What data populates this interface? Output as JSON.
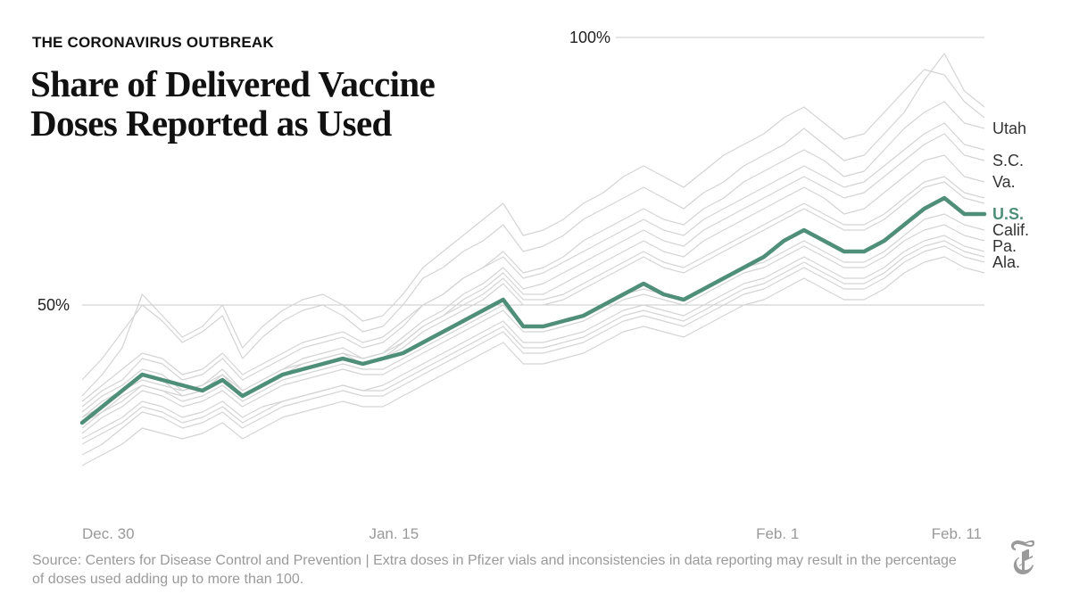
{
  "header": {
    "kicker": "THE CORONAVIRUS OUTBREAK",
    "title": "Share of Delivered Vaccine Doses Reported as Used"
  },
  "footer": {
    "source": "Source: Centers for Disease Control and Prevention | Extra doses in Pfizer vials and inconsistencies in data reporting may result in the percentage of doses used adding up to more than 100."
  },
  "logo": {
    "icon": "nyt-logo-icon",
    "color": "#9a9a9a"
  },
  "chart_data": {
    "type": "line",
    "title": "Share of Delivered Vaccine Doses Reported as Used",
    "xlabel": "",
    "ylabel": "",
    "xlim": [
      0,
      43
    ],
    "ylim": [
      10,
      100
    ],
    "x_ticks": [
      {
        "day": 0,
        "label": "Dec. 30"
      },
      {
        "day": 14,
        "label": "Jan. 15"
      },
      {
        "day": 32,
        "label": "Feb. 1"
      },
      {
        "day": 42,
        "label": "Feb. 11"
      }
    ],
    "y_ticks": [
      {
        "value": 50,
        "label": "50%"
      },
      {
        "value": 100,
        "label": "100%"
      }
    ],
    "grid": true,
    "highlight": {
      "name": "U.S.",
      "color": "#4f8f7a",
      "values": [
        28,
        31,
        34,
        37,
        36,
        35,
        34,
        36,
        33,
        35,
        37,
        38,
        39,
        40,
        39,
        40,
        41,
        43,
        45,
        47,
        49,
        51,
        46,
        46,
        47,
        48,
        50,
        52,
        54,
        52,
        51,
        53,
        55,
        57,
        59,
        62,
        64,
        62,
        60,
        60,
        62,
        65,
        68,
        70,
        67,
        67
      ]
    },
    "series_color": "#d4d4d4",
    "series": [
      {
        "name": "Utah",
        "values": [
          31,
          34,
          36,
          40,
          39,
          36,
          37,
          40,
          36,
          38,
          40,
          42,
          43,
          44,
          42,
          43,
          46,
          50,
          52,
          55,
          57,
          60,
          56,
          57,
          59,
          62,
          64,
          66,
          68,
          66,
          65,
          68,
          70,
          73,
          75,
          77,
          79,
          77,
          74,
          75,
          79,
          83,
          86,
          88,
          84,
          83
        ]
      },
      {
        "name": "S.C.",
        "values": [
          30,
          33,
          35,
          38,
          37,
          34,
          35,
          38,
          34,
          36,
          38,
          40,
          41,
          42,
          40,
          41,
          44,
          47,
          49,
          52,
          54,
          57,
          53,
          54,
          56,
          58,
          60,
          62,
          64,
          62,
          61,
          64,
          66,
          68,
          70,
          72,
          74,
          72,
          70,
          71,
          74,
          77,
          80,
          82,
          78,
          77
        ]
      },
      {
        "name": "Va.",
        "values": [
          29,
          32,
          34,
          37,
          36,
          33,
          34,
          37,
          33,
          35,
          37,
          39,
          40,
          41,
          39,
          40,
          43,
          46,
          48,
          51,
          53,
          56,
          52,
          52,
          54,
          56,
          58,
          60,
          62,
          60,
          59,
          62,
          64,
          66,
          68,
          70,
          72,
          70,
          67,
          68,
          71,
          74,
          77,
          78,
          74,
          73
        ]
      },
      {
        "name": "Calif.",
        "values": [
          27,
          30,
          32,
          35,
          34,
          32,
          33,
          35,
          32,
          34,
          36,
          37,
          38,
          39,
          38,
          38,
          40,
          42,
          44,
          46,
          48,
          50,
          46,
          46,
          47,
          48,
          50,
          52,
          53,
          52,
          51,
          53,
          55,
          57,
          58,
          60,
          62,
          60,
          58,
          58,
          60,
          63,
          66,
          67,
          65,
          64
        ]
      },
      {
        "name": "Pa.",
        "values": [
          26,
          29,
          31,
          34,
          33,
          31,
          32,
          34,
          31,
          33,
          35,
          36,
          37,
          38,
          37,
          37,
          39,
          41,
          43,
          45,
          47,
          49,
          45,
          45,
          46,
          47,
          49,
          51,
          52,
          51,
          50,
          52,
          54,
          56,
          57,
          59,
          61,
          59,
          57,
          57,
          59,
          62,
          64,
          65,
          63,
          62
        ]
      },
      {
        "name": "Ala.",
        "values": [
          25,
          27,
          29,
          32,
          31,
          29,
          30,
          32,
          29,
          31,
          32,
          33,
          34,
          35,
          34,
          35,
          37,
          39,
          41,
          43,
          45,
          47,
          43,
          43,
          44,
          45,
          47,
          49,
          50,
          49,
          48,
          50,
          52,
          54,
          55,
          57,
          59,
          57,
          55,
          55,
          57,
          60,
          62,
          63,
          61,
          60
        ]
      },
      {
        "name": "",
        "values": [
          36,
          40,
          45,
          50,
          47,
          43,
          45,
          48,
          40,
          44,
          47,
          49,
          50,
          48,
          45,
          46,
          50,
          55,
          57,
          60,
          62,
          65,
          60,
          61,
          63,
          66,
          68,
          70,
          72,
          70,
          68,
          71,
          73,
          76,
          78,
          80,
          83,
          80,
          77,
          78,
          82,
          86,
          92,
          97,
          90,
          87
        ]
      },
      {
        "name": "",
        "values": [
          20,
          22,
          24,
          27,
          26,
          25,
          26,
          28,
          25,
          27,
          29,
          30,
          31,
          32,
          31,
          31,
          33,
          35,
          37,
          39,
          41,
          43,
          39,
          39,
          40,
          41,
          43,
          45,
          46,
          45,
          44,
          46,
          48,
          50,
          51,
          53,
          55,
          53,
          51,
          51,
          53,
          56,
          58,
          59,
          57,
          56
        ]
      },
      {
        "name": "",
        "values": [
          33,
          37,
          42,
          52,
          48,
          44,
          46,
          50,
          42,
          46,
          49,
          51,
          52,
          50,
          47,
          48,
          52,
          57,
          60,
          63,
          66,
          69,
          63,
          64,
          66,
          69,
          71,
          74,
          76,
          74,
          72,
          75,
          78,
          80,
          82,
          85,
          87,
          84,
          81,
          82,
          86,
          90,
          94,
          93,
          88,
          85
        ]
      },
      {
        "name": "",
        "values": [
          28,
          30,
          33,
          35,
          34,
          33,
          34,
          36,
          33,
          35,
          37,
          38,
          39,
          40,
          39,
          40,
          42,
          45,
          47,
          49,
          51,
          54,
          50,
          50,
          51,
          53,
          55,
          57,
          59,
          57,
          56,
          58,
          60,
          62,
          64,
          66,
          68,
          66,
          64,
          64,
          66,
          69,
          72,
          73,
          70,
          69
        ]
      },
      {
        "name": "",
        "values": [
          24,
          26,
          28,
          31,
          30,
          28,
          29,
          31,
          28,
          30,
          32,
          33,
          34,
          35,
          34,
          34,
          36,
          38,
          40,
          42,
          44,
          46,
          42,
          42,
          43,
          44,
          46,
          48,
          49,
          48,
          47,
          49,
          51,
          53,
          54,
          56,
          58,
          56,
          54,
          54,
          56,
          59,
          61,
          62,
          60,
          59
        ]
      },
      {
        "name": "",
        "values": [
          32,
          35,
          38,
          41,
          40,
          37,
          38,
          41,
          37,
          39,
          41,
          43,
          44,
          45,
          43,
          44,
          47,
          50,
          52,
          55,
          57,
          59,
          55,
          56,
          58,
          60,
          62,
          64,
          66,
          64,
          63,
          66,
          68,
          70,
          72,
          74,
          76,
          74,
          72,
          73,
          76,
          79,
          82,
          84,
          80,
          79
        ]
      },
      {
        "name": "",
        "values": [
          22,
          24,
          27,
          30,
          29,
          27,
          28,
          30,
          27,
          29,
          31,
          32,
          33,
          34,
          33,
          33,
          35,
          37,
          39,
          41,
          43,
          45,
          41,
          41,
          42,
          43,
          45,
          47,
          48,
          47,
          46,
          48,
          50,
          52,
          53,
          55,
          57,
          55,
          53,
          53,
          55,
          58,
          60,
          61,
          59,
          58
        ]
      },
      {
        "name": "",
        "values": [
          29,
          31,
          34,
          36,
          35,
          34,
          35,
          37,
          34,
          36,
          38,
          39,
          40,
          41,
          40,
          41,
          43,
          46,
          48,
          50,
          52,
          55,
          51,
          51,
          52,
          54,
          56,
          58,
          60,
          58,
          57,
          59,
          61,
          63,
          65,
          67,
          69,
          67,
          65,
          65,
          67,
          70,
          73,
          74,
          71,
          70
        ]
      }
    ]
  }
}
